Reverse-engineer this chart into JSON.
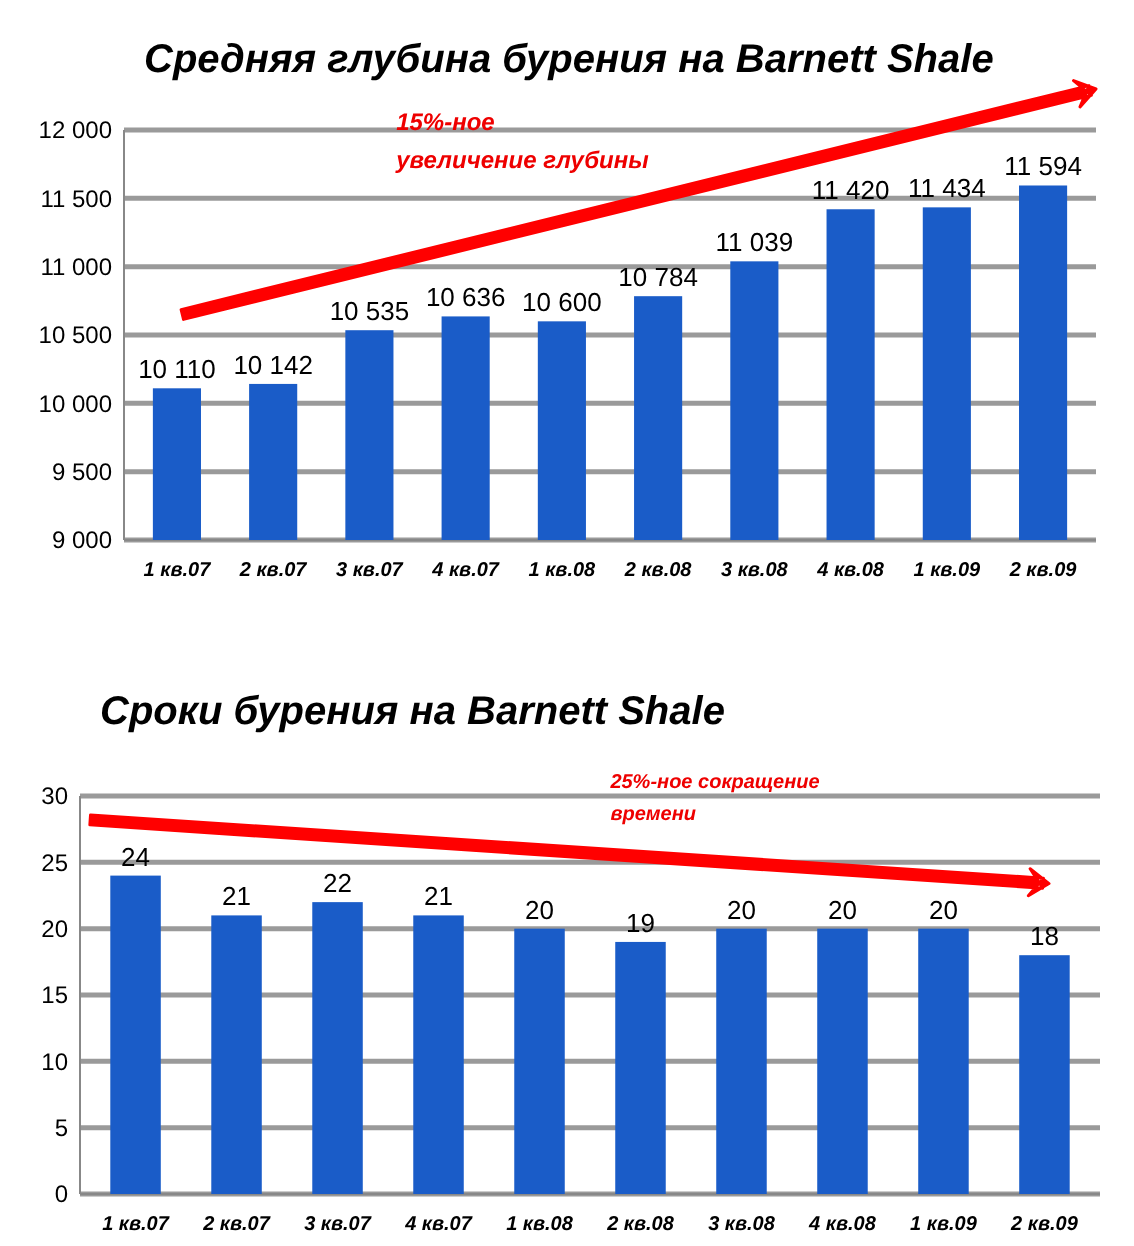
{
  "chart_data": [
    {
      "type": "bar",
      "title": "Средняя глубина бурения на Barnett Shale",
      "categories": [
        "1 кв.07",
        "2 кв.07",
        "3 кв.07",
        "4 кв.07",
        "1 кв.08",
        "2 кв.08",
        "3 кв.08",
        "4 кв.08",
        "1 кв.09",
        "2 кв.09"
      ],
      "values": [
        10110,
        10142,
        10535,
        10636,
        10600,
        10784,
        11039,
        11420,
        11434,
        11594
      ],
      "color": "#1a5cc8",
      "ylim": [
        9000,
        12000
      ],
      "yticks": [
        {
          "value": 9000,
          "label": "9 000"
        },
        {
          "value": 9500,
          "label": "9 500"
        },
        {
          "value": 10000,
          "label": "10 000"
        },
        {
          "value": 10500,
          "label": "10 500"
        },
        {
          "value": 11000,
          "label": "11 000"
        },
        {
          "value": 11500,
          "label": "11 500"
        },
        {
          "value": 12000,
          "label": "12 000"
        }
      ],
      "value_labels": [
        "10 110",
        "10 142",
        "10 535",
        "10 636",
        "10 600",
        "10 784",
        "11 039",
        "11 420",
        "11 434",
        "11 594"
      ],
      "grid": "y",
      "annotations": [
        "15%-ное\nувеличение глубины"
      ]
    },
    {
      "type": "bar",
      "title": "Сроки бурения на Barnett Shale",
      "categories": [
        "1 кв.07",
        "2 кв.07",
        "3 кв.07",
        "4 кв.07",
        "1 кв.08",
        "2 кв.08",
        "3 кв.08",
        "4 кв.08",
        "1 кв.09",
        "2 кв.09"
      ],
      "values": [
        24,
        21,
        22,
        21,
        20,
        19,
        20,
        20,
        20,
        18
      ],
      "color": "#1a5cc8",
      "ylim": [
        0,
        30
      ],
      "yticks": [
        0,
        5,
        10,
        15,
        20,
        25,
        30
      ],
      "data_labels": true,
      "grid": "y",
      "annotations": [
        "25%-ное сокращение\nвремени"
      ]
    }
  ]
}
